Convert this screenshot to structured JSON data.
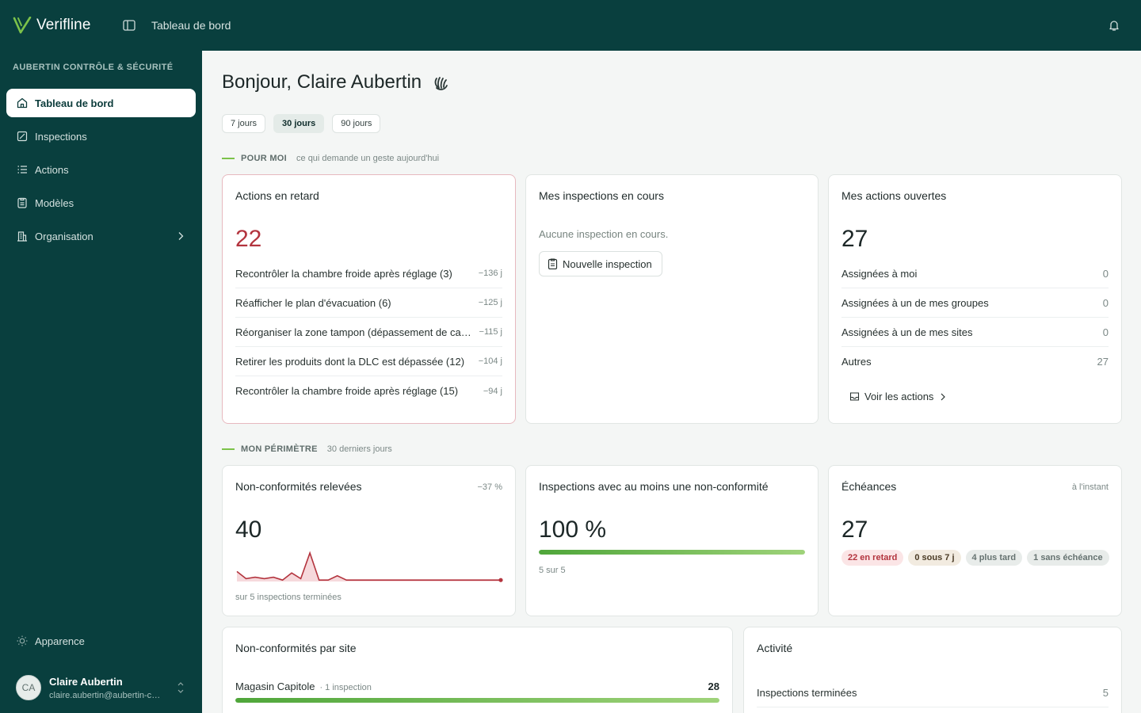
{
  "app": {
    "name": "Verifline",
    "page_title": "Tableau de bord"
  },
  "sidebar": {
    "org": "AUBERTIN CONTRÔLE & SÉCURITÉ",
    "items": [
      {
        "label": "Tableau de bord",
        "icon": "home-icon"
      },
      {
        "label": "Inspections",
        "icon": "inspection-icon"
      },
      {
        "label": "Actions",
        "icon": "list-icon"
      },
      {
        "label": "Modèles",
        "icon": "clipboard-icon"
      },
      {
        "label": "Organisation",
        "icon": "building-icon"
      }
    ],
    "appearance": "Apparence",
    "user": {
      "initials": "CA",
      "name": "Claire Aubertin",
      "email": "claire.aubertin@aubertin-controle-securite.fr"
    }
  },
  "main": {
    "greeting": "Bonjour, Claire Aubertin",
    "ranges": [
      "7 jours",
      "30 jours",
      "90 jours"
    ],
    "selected_range": "30 jours",
    "section_me": {
      "title": "POUR MOI",
      "subtitle": "ce qui demande un geste aujourd'hui"
    },
    "overdue": {
      "title": "Actions en retard",
      "count": "22",
      "items": [
        {
          "label": "Recontrôler la chambre froide après réglage (3)",
          "delay": "−136 j"
        },
        {
          "label": "Réafficher le plan d'évacuation (6)",
          "delay": "−125 j"
        },
        {
          "label": "Réorganiser la zone tampon (dépassement de capacité)",
          "delay": "−115 j"
        },
        {
          "label": "Retirer les produits dont la DLC est dépassée (12)",
          "delay": "−104 j"
        },
        {
          "label": "Recontrôler la chambre froide après réglage (15)",
          "delay": "−94 j"
        }
      ]
    },
    "my_inspections": {
      "title": "Mes inspections en cours",
      "empty": "Aucune inspection en cours.",
      "button": "Nouvelle inspection"
    },
    "my_actions": {
      "title": "Mes actions ouvertes",
      "count": "27",
      "rows": [
        {
          "label": "Assignées à moi",
          "value": "0"
        },
        {
          "label": "Assignées à un de mes groupes",
          "value": "0"
        },
        {
          "label": "Assignées à un de mes sites",
          "value": "0"
        },
        {
          "label": "Autres",
          "value": "27"
        }
      ],
      "link": "Voir les actions"
    },
    "section_scope": {
      "title": "MON PÉRIMÈTRE",
      "subtitle": "30 derniers jours"
    },
    "nonconf": {
      "title": "Non-conformités relevées",
      "delta": "−37 %",
      "count": "40",
      "footer": "sur 5 inspections terminées"
    },
    "insp_nc": {
      "title": "Inspections avec au moins une non-conformité",
      "value": "100 %",
      "progress": 1.0,
      "footer": "5 sur 5"
    },
    "deadlines": {
      "title": "Échéances",
      "meta": "à l'instant",
      "count": "27",
      "badges": [
        "22 en retard",
        "0 sous 7 j",
        "4 plus tard",
        "1 sans échéance"
      ]
    },
    "by_site": {
      "title": "Non-conformités par site",
      "sites": [
        {
          "name": "Magasin Capitole",
          "sub": "· 1 inspection",
          "value": "28",
          "fraction": 1.0
        }
      ]
    },
    "activity": {
      "title": "Activité",
      "rows": [
        {
          "label": "Inspections terminées",
          "value": "5"
        }
      ]
    },
    "sparkline": [
      0.35,
      0.1,
      0.15,
      0.1,
      0.15,
      0.05,
      0.3,
      0.1,
      1.0,
      0.05,
      0.05,
      0.2,
      0.05,
      0.05,
      0.05,
      0.05,
      0.05,
      0.05,
      0.05,
      0.05,
      0.05,
      0.05,
      0.05,
      0.05,
      0.05,
      0.05,
      0.05,
      0.05,
      0.05,
      0.05
    ]
  },
  "colors": {
    "brand": "#093f3e",
    "accent": "#7cc24a",
    "danger": "#b3343e"
  }
}
